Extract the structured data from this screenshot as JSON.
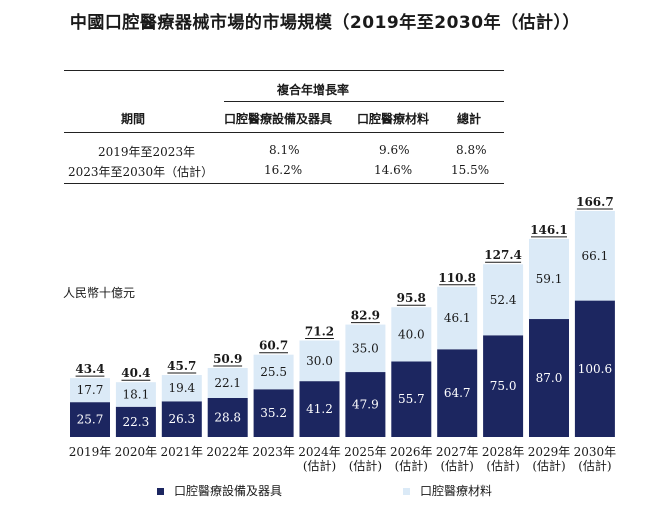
{
  "title": "中國口腔醫療器械市場的市場規模（2019年至2030年（估計））",
  "cagr_table": {
    "group_header": "複合年增長率",
    "columns": [
      "期間",
      "口腔醫療設備及器具",
      "口腔醫療材料",
      "總計"
    ],
    "rows": [
      {
        "period": "2019年至2023年",
        "equipment": "8.1%",
        "materials": "9.6%",
        "total": "8.8%"
      },
      {
        "period": "2023年至2030年（估計）",
        "equipment": "16.2%",
        "materials": "14.6%",
        "total": "15.5%"
      }
    ]
  },
  "chart_data": {
    "type": "bar",
    "stacked": true,
    "ylabel": "人民幣十億元",
    "categories": [
      [
        "2019年"
      ],
      [
        "2020年"
      ],
      [
        "2021年"
      ],
      [
        "2022年"
      ],
      [
        "2023年"
      ],
      [
        "2024年",
        "(估計)"
      ],
      [
        "2025年",
        "(估計)"
      ],
      [
        "2026年",
        "(估計)"
      ],
      [
        "2027年",
        "(估計)"
      ],
      [
        "2028年",
        "(估計)"
      ],
      [
        "2029年",
        "(估計)"
      ],
      [
        "2030年",
        "(估計)"
      ]
    ],
    "series": [
      {
        "name": "口腔醫療設備及器具",
        "color": "#1c2660",
        "values": [
          25.7,
          22.3,
          26.3,
          28.8,
          35.2,
          41.2,
          47.9,
          55.7,
          64.7,
          75.0,
          87.0,
          100.6
        ]
      },
      {
        "name": "口腔醫療材料",
        "color": "#dbeaf7",
        "values": [
          17.7,
          18.1,
          19.4,
          22.1,
          25.5,
          30.0,
          35.0,
          40.0,
          46.1,
          52.4,
          59.1,
          66.1
        ]
      }
    ],
    "totals": [
      43.4,
      40.4,
      45.7,
      50.9,
      60.7,
      71.2,
      82.9,
      95.8,
      110.8,
      127.4,
      146.1,
      166.7
    ],
    "value_labels": {
      "equipment": [
        "25.7",
        "22.3",
        "26.3",
        "28.8",
        "35.2",
        "41.2",
        "47.9",
        "55.7",
        "64.7",
        "75.0",
        "87.0",
        "100.6"
      ],
      "materials": [
        "17.7",
        "18.1",
        "19.4",
        "22.1",
        "25.5",
        "30.0",
        "35.0",
        "40.0",
        "46.1",
        "52.4",
        "59.1",
        "66.1"
      ],
      "totals": [
        "43.4",
        "40.4",
        "45.7",
        "50.9",
        "60.7",
        "71.2",
        "82.9",
        "95.8",
        "110.8",
        "127.4",
        "146.1",
        "166.7"
      ]
    },
    "legend": [
      "口腔醫療設備及器具",
      "口腔醫療材料"
    ],
    "legend_position": "bottom",
    "grid": false
  }
}
